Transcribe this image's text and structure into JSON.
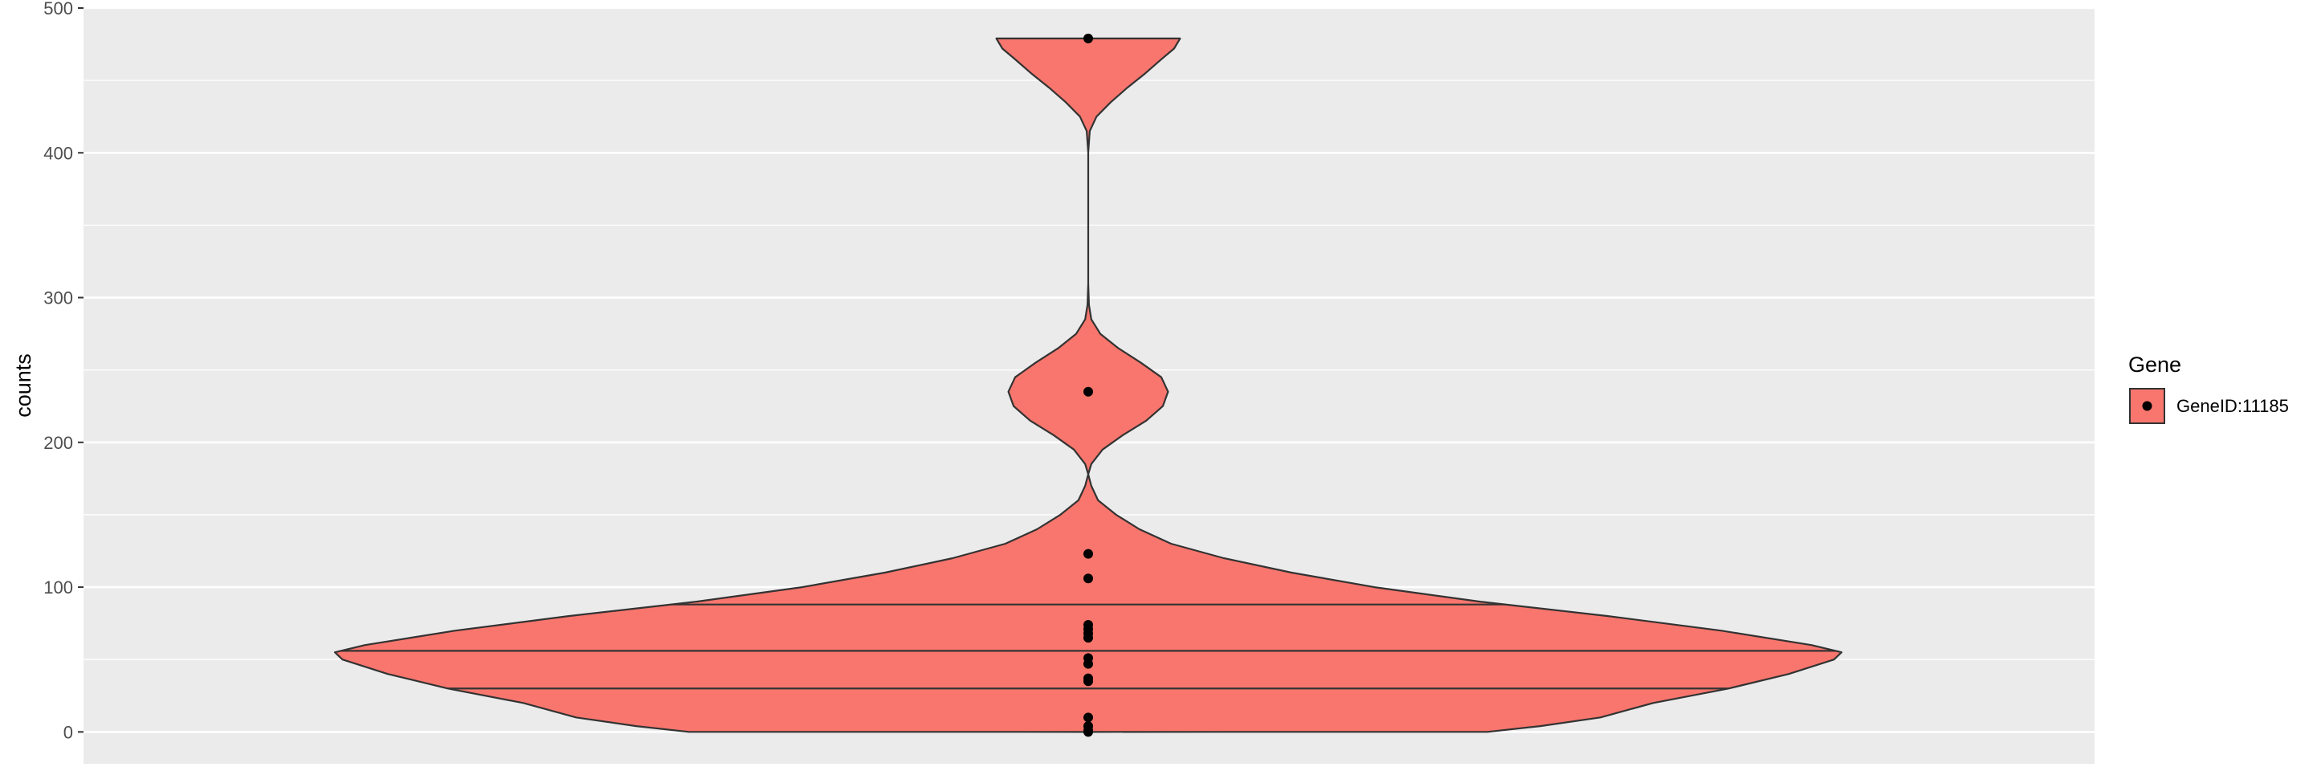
{
  "chart_data": {
    "type": "violin",
    "title": "",
    "xlabel": "",
    "ylabel": "counts",
    "ylim": [
      -22,
      500
    ],
    "y_ticks": [
      0,
      100,
      200,
      300,
      400,
      500
    ],
    "y_tick_labels": [
      "0",
      "100",
      "200",
      "300",
      "400",
      "500"
    ],
    "grid": true,
    "legend": {
      "title": "Gene",
      "position": "right",
      "entries": [
        {
          "label": "GeneID:11185",
          "color": "#F8766D"
        }
      ]
    },
    "series": [
      {
        "name": "GeneID:11185",
        "fill": "#F8766D",
        "quantiles": [
          30,
          56,
          88
        ],
        "density_profile": [
          [
            0,
            0.53
          ],
          [
            4,
            0.6
          ],
          [
            10,
            0.68
          ],
          [
            20,
            0.75
          ],
          [
            30,
            0.85
          ],
          [
            40,
            0.93
          ],
          [
            50,
            0.99
          ],
          [
            55,
            1.0
          ],
          [
            60,
            0.96
          ],
          [
            70,
            0.84
          ],
          [
            80,
            0.69
          ],
          [
            90,
            0.52
          ],
          [
            100,
            0.38
          ],
          [
            110,
            0.27
          ],
          [
            120,
            0.18
          ],
          [
            130,
            0.11
          ],
          [
            140,
            0.068
          ],
          [
            150,
            0.037
          ],
          [
            160,
            0.013
          ],
          [
            170,
            0.004
          ],
          [
            178,
            0.0
          ],
          [
            185,
            0.004
          ],
          [
            195,
            0.019
          ],
          [
            205,
            0.046
          ],
          [
            215,
            0.077
          ],
          [
            225,
            0.099
          ],
          [
            235,
            0.106
          ],
          [
            245,
            0.097
          ],
          [
            255,
            0.07
          ],
          [
            265,
            0.04
          ],
          [
            275,
            0.016
          ],
          [
            285,
            0.004
          ],
          [
            295,
            0.001
          ],
          [
            310,
            0.0
          ],
          [
            400,
            0.0
          ],
          [
            415,
            0.002
          ],
          [
            425,
            0.011
          ],
          [
            435,
            0.03
          ],
          [
            445,
            0.052
          ],
          [
            455,
            0.076
          ],
          [
            465,
            0.098
          ],
          [
            472,
            0.114
          ],
          [
            479,
            0.122
          ]
        ],
        "points": [
          0,
          1,
          4,
          10,
          35,
          37,
          47,
          51,
          65,
          68,
          71,
          74,
          106,
          123,
          235,
          479
        ]
      }
    ]
  }
}
